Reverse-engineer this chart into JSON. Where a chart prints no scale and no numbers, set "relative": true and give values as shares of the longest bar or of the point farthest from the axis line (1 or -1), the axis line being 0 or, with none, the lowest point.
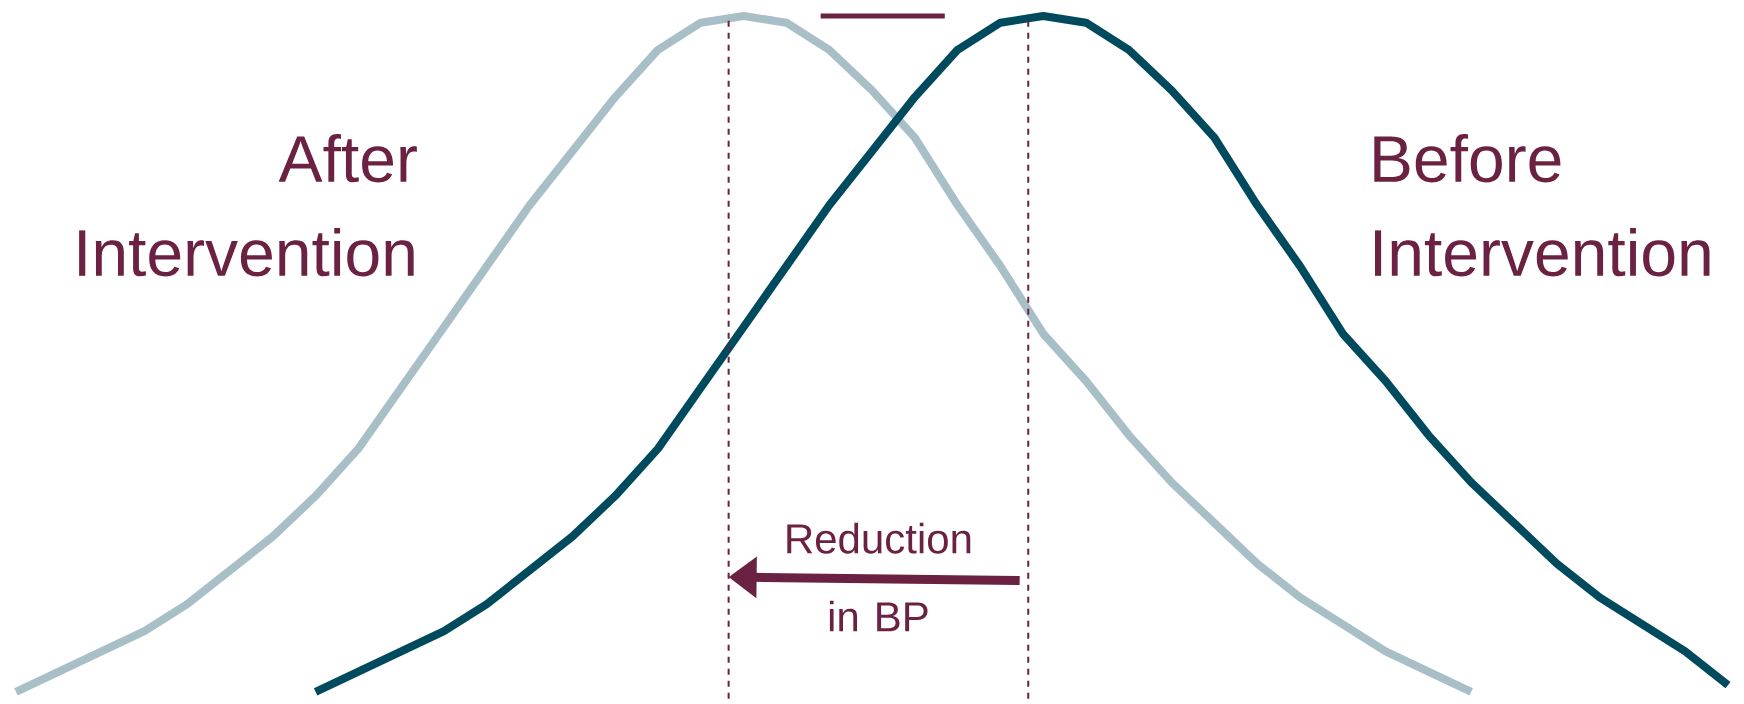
{
  "chart_data": {
    "type": "line",
    "relative": true,
    "categories": [
      null,
      null,
      null,
      null,
      null,
      null,
      null,
      null,
      null,
      null,
      null,
      null,
      null,
      null,
      null,
      null,
      null,
      null,
      null,
      null,
      null,
      null,
      null,
      null,
      null,
      null,
      null,
      null,
      null,
      null,
      null,
      null,
      null,
      null,
      null,
      null,
      null,
      null,
      null,
      null,
      null
    ],
    "series": [
      {
        "name": "After Intervention",
        "color": "#a9bfc7",
        "values": [
          0.0,
          0.03,
          0.06,
          0.09,
          0.13,
          0.18,
          0.23,
          0.29,
          0.36,
          0.45,
          0.54,
          0.63,
          0.72,
          0.8,
          0.88,
          0.95,
          0.99,
          1.0,
          0.99,
          0.95,
          0.89,
          0.82,
          0.72,
          0.63,
          0.53,
          0.46,
          0.38,
          0.31,
          0.25,
          0.19,
          0.14,
          0.1,
          0.06,
          0.03,
          0.0,
          null,
          null,
          null,
          null,
          null,
          null
        ]
      },
      {
        "name": "Before Intervention",
        "color": "#004a5e",
        "values": [
          null,
          null,
          null,
          null,
          null,
          null,
          null,
          0.0,
          0.03,
          0.06,
          0.09,
          0.13,
          0.18,
          0.23,
          0.29,
          0.36,
          0.45,
          0.54,
          0.63,
          0.72,
          0.8,
          0.88,
          0.95,
          0.99,
          1.0,
          0.99,
          0.95,
          0.89,
          0.82,
          0.72,
          0.63,
          0.53,
          0.46,
          0.38,
          0.31,
          0.25,
          0.19,
          0.14,
          0.1,
          0.06,
          0.01
        ]
      }
    ],
    "annotations": [
      "Reduction in BP"
    ]
  }
}
